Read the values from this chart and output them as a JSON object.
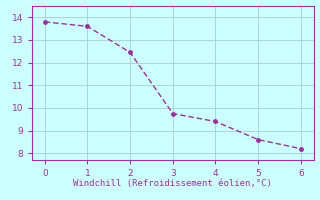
{
  "x": [
    0,
    1,
    2,
    3,
    4,
    5,
    6
  ],
  "y": [
    13.8,
    13.6,
    12.45,
    9.75,
    9.4,
    8.6,
    8.2
  ],
  "line_color": "#993399",
  "marker_color": "#993399",
  "bg_color": "#ccffff",
  "grid_color": "#aacccc",
  "xlabel": "Windchill (Refroidissement éolien,°C)",
  "xlabel_color": "#993399",
  "tick_color": "#993399",
  "spine_color": "#993399",
  "xlim": [
    -0.3,
    6.3
  ],
  "ylim": [
    7.7,
    14.5
  ],
  "xticks": [
    0,
    1,
    2,
    3,
    4,
    5,
    6
  ],
  "yticks": [
    8,
    9,
    10,
    11,
    12,
    13,
    14
  ],
  "xlabel_fontsize": 6.5,
  "tick_fontsize": 6.5,
  "line_width": 1.0,
  "marker_size": 2.5
}
